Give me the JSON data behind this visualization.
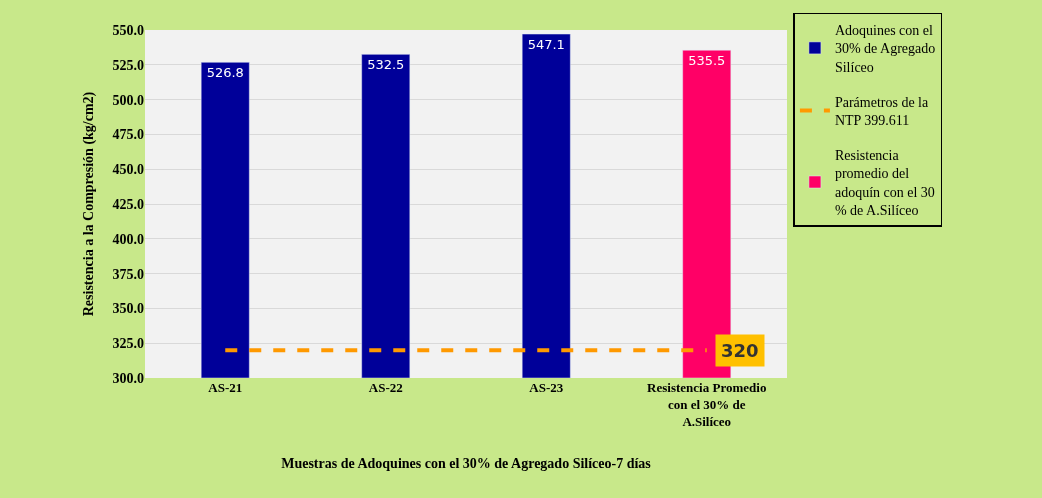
{
  "chart_data": {
    "type": "bar",
    "xlabel": "Muestras de Adoquines con el 30% de Agregado Silíceo-7 días",
    "ylabel": "Resistencia a la Compresión (kg/cm2)",
    "categories": [
      "AS-21",
      "AS-22",
      "AS-23",
      "Resistencia Promedio con el 30% de A.Silíceo"
    ],
    "series": [
      {
        "name": "Adoquines con el 30% de Agregado Silíceo",
        "color": "#000099",
        "values": [
          526.8,
          532.5,
          547.1,
          null
        ],
        "value_labels": [
          "526.8",
          "532.5",
          "547.1",
          null
        ]
      },
      {
        "name": "Parámetros de la NTP 399.611",
        "type": "line",
        "color": "#ff9900",
        "line_style": "dashed",
        "values": [
          320,
          320,
          320,
          320
        ],
        "value_labels": [
          null,
          null,
          null,
          "320"
        ]
      },
      {
        "name": "Resistencia promedio del adoquín con el 30 % de A.Silíceo",
        "color": "#ff0066",
        "values": [
          null,
          null,
          null,
          535.5
        ],
        "value_labels": [
          null,
          null,
          null,
          "535.5"
        ]
      }
    ],
    "ylim": [
      300,
      550
    ],
    "yticks": [
      {
        "value": 300,
        "label": "300.0"
      },
      {
        "value": 325,
        "label": "325.0"
      },
      {
        "value": 350,
        "label": "350.0"
      },
      {
        "value": 375,
        "label": "375.0"
      },
      {
        "value": 400,
        "label": "400.0"
      },
      {
        "value": 425,
        "label": "425.0"
      },
      {
        "value": 450,
        "label": "450.0"
      },
      {
        "value": 475,
        "label": "475.0"
      },
      {
        "value": 500,
        "label": "500.0"
      },
      {
        "value": 525,
        "label": "525.0"
      },
      {
        "value": 550,
        "label": "550.0"
      }
    ],
    "grid": "y",
    "legend": "right"
  }
}
